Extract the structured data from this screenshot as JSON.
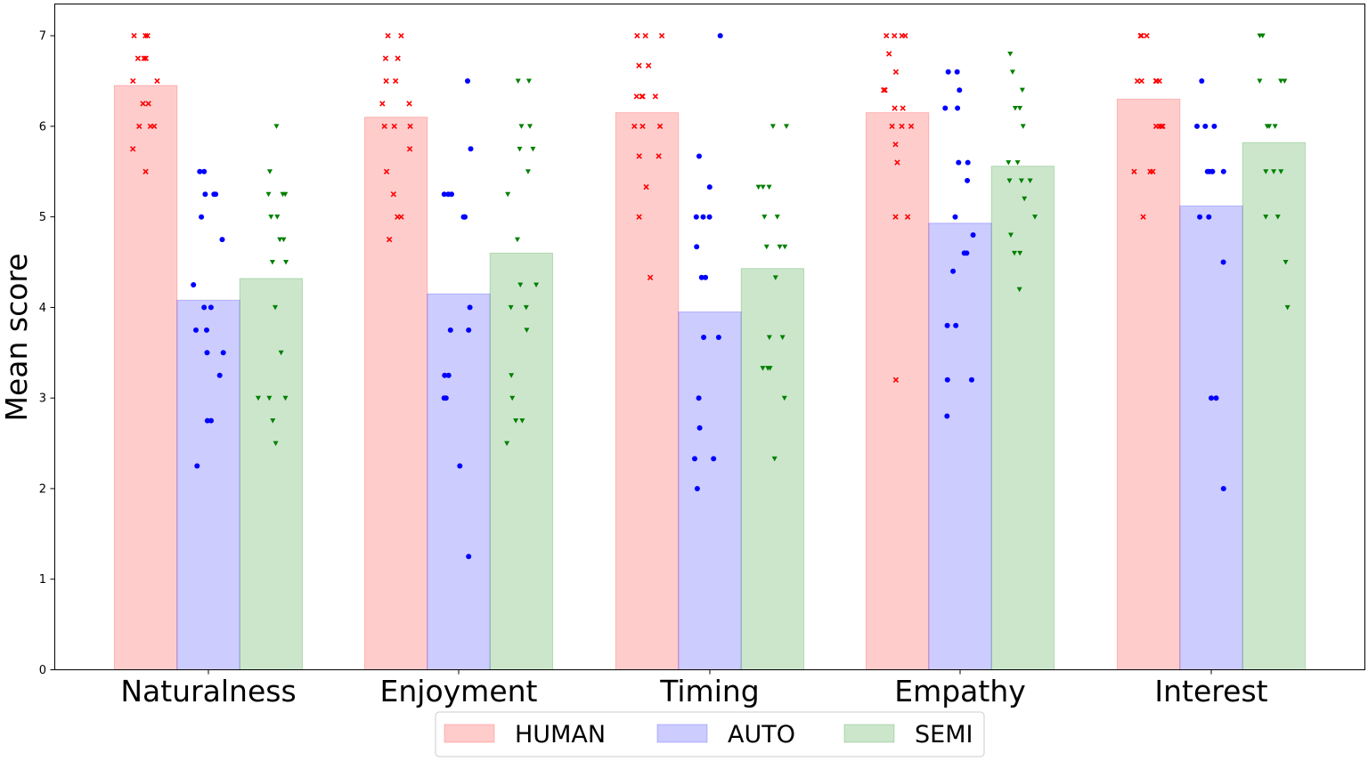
{
  "chart_data": {
    "type": "bar",
    "title": "",
    "xlabel": "",
    "ylabel": "Mean score",
    "ylim": [
      0,
      7.35
    ],
    "yticks": [
      "0",
      "1",
      "2",
      "3",
      "4",
      "5",
      "6",
      "7"
    ],
    "categories": [
      "Naturalness",
      "Enjoyment",
      "Timing",
      "Empathy",
      "Interest"
    ],
    "legend_position": "bottom-center",
    "series": [
      {
        "name": "HUMAN",
        "color": "#ff0000",
        "marker": "x",
        "values": [
          6.45,
          6.1,
          6.15,
          6.15,
          6.3
        ],
        "points": [
          [
            7,
            7,
            7,
            6.75,
            6.75,
            6.75,
            6.5,
            6.5,
            6.25,
            6.25,
            6,
            6,
            6,
            5.75,
            5.5
          ],
          [
            7,
            7,
            6.75,
            6.75,
            6.5,
            6.5,
            6.25,
            6.25,
            6,
            6,
            6,
            5.75,
            5.5,
            5.25,
            5,
            5,
            4.75
          ],
          [
            7,
            7,
            7,
            6.67,
            6.67,
            6.33,
            6.33,
            6.33,
            6.33,
            6,
            6,
            6,
            5.67,
            5.67,
            5.33,
            5,
            4.33
          ],
          [
            7,
            7,
            7,
            7,
            6.8,
            6.6,
            6.4,
            6.4,
            6.2,
            6.2,
            6,
            6,
            6,
            5.8,
            5.6,
            5,
            5,
            3.2
          ],
          [
            7,
            7,
            7,
            6.5,
            6.5,
            6.5,
            6.5,
            6.5,
            6,
            6,
            6,
            6,
            5.5,
            5.5,
            5.5,
            5
          ]
        ]
      },
      {
        "name": "AUTO",
        "color": "#0000ff",
        "marker": "o",
        "values": [
          4.08,
          4.15,
          3.95,
          4.93,
          5.12
        ],
        "points": [
          [
            5.5,
            5.5,
            5.25,
            5.25,
            5.25,
            5,
            4.75,
            4.25,
            4,
            4,
            3.75,
            3.75,
            3.5,
            3.5,
            3.25,
            2.75,
            2.75,
            2.25
          ],
          [
            6.5,
            5.75,
            5.25,
            5.25,
            5.25,
            5,
            5,
            5,
            4,
            3.75,
            3.75,
            3.25,
            3.25,
            3,
            3,
            2.25,
            1.25
          ],
          [
            7,
            5.67,
            5.33,
            5,
            5,
            5,
            4.67,
            4.33,
            4.33,
            3.67,
            3.67,
            3,
            2.67,
            2.33,
            2.33,
            2
          ],
          [
            6.6,
            6.6,
            6.4,
            6.2,
            6.2,
            5.6,
            5.6,
            5.4,
            5,
            4.8,
            4.6,
            4.6,
            4.4,
            3.8,
            3.8,
            3.2,
            3.2,
            2.8
          ],
          [
            6.5,
            6,
            6,
            6,
            5.5,
            5.5,
            5.5,
            5.5,
            5.5,
            5,
            5,
            4.5,
            3,
            3,
            2
          ]
        ]
      },
      {
        "name": "SEMI",
        "color": "#008000",
        "marker": "v",
        "values": [
          4.32,
          4.6,
          4.43,
          5.56,
          5.82
        ],
        "points": [
          [
            6,
            5.5,
            5.25,
            5.25,
            5.25,
            5,
            5,
            4.75,
            4.75,
            4.5,
            4.5,
            4,
            3.5,
            3,
            3,
            3,
            2.75,
            2.5
          ],
          [
            6.5,
            6.5,
            6,
            6,
            5.75,
            5.75,
            5.5,
            5.25,
            4.75,
            4.25,
            4.25,
            4,
            4,
            3.75,
            3.25,
            3,
            2.75,
            2.75,
            2.5
          ],
          [
            6,
            6,
            5.33,
            5.33,
            5.33,
            5,
            5,
            4.67,
            4.67,
            4.67,
            4.33,
            3.67,
            3.67,
            3.33,
            3.33,
            3.33,
            3,
            2.33
          ],
          [
            6.8,
            6.6,
            6.4,
            6.2,
            6.2,
            6,
            5.6,
            5.6,
            5.4,
            5.4,
            5.4,
            5.2,
            5,
            4.8,
            4.6,
            4.6,
            4.2
          ],
          [
            7,
            7,
            6.5,
            6.5,
            6.5,
            6,
            6,
            6,
            5.5,
            5.5,
            5.5,
            5,
            5,
            4.5,
            4
          ]
        ]
      }
    ]
  }
}
